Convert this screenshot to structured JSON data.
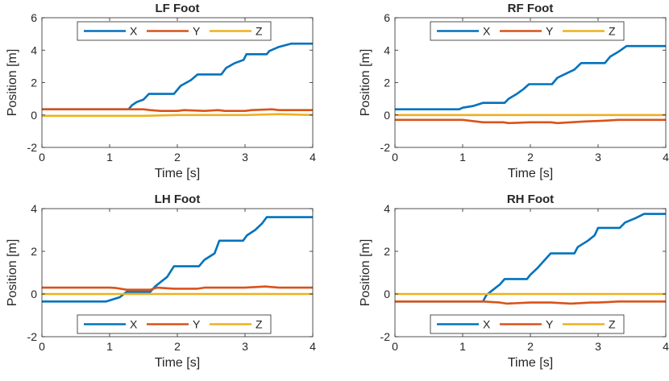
{
  "chart_data": [
    {
      "type": "line",
      "title": "LF Foot",
      "xlabel": "Time [s]",
      "ylabel": "Position [m]",
      "xlim": [
        0,
        4
      ],
      "ylim": [
        -2,
        6
      ],
      "xticks": [
        0,
        1,
        2,
        3,
        4
      ],
      "yticks": [
        -2,
        0,
        2,
        4,
        6
      ],
      "legend": "top",
      "series": [
        {
          "name": "X",
          "color": "#0072BD",
          "points": [
            [
              0,
              0.35
            ],
            [
              1.28,
              0.35
            ],
            [
              1.33,
              0.6
            ],
            [
              1.4,
              0.8
            ],
            [
              1.5,
              0.95
            ],
            [
              1.58,
              1.3
            ],
            [
              1.95,
              1.3
            ],
            [
              2.05,
              1.8
            ],
            [
              2.2,
              2.15
            ],
            [
              2.3,
              2.5
            ],
            [
              2.65,
              2.5
            ],
            [
              2.72,
              2.9
            ],
            [
              2.85,
              3.2
            ],
            [
              2.98,
              3.4
            ],
            [
              3.02,
              3.75
            ],
            [
              3.32,
              3.75
            ],
            [
              3.36,
              3.95
            ],
            [
              3.5,
              4.2
            ],
            [
              3.68,
              4.4
            ],
            [
              4,
              4.4
            ]
          ]
        },
        {
          "name": "Y",
          "color": "#D95319",
          "points": [
            [
              0,
              0.35
            ],
            [
              1.5,
              0.35
            ],
            [
              1.6,
              0.3
            ],
            [
              1.75,
              0.25
            ],
            [
              2.0,
              0.25
            ],
            [
              2.1,
              0.3
            ],
            [
              2.4,
              0.25
            ],
            [
              2.6,
              0.3
            ],
            [
              2.7,
              0.25
            ],
            [
              3.0,
              0.25
            ],
            [
              3.1,
              0.3
            ],
            [
              3.4,
              0.35
            ],
            [
              3.5,
              0.3
            ],
            [
              4,
              0.3
            ]
          ]
        },
        {
          "name": "Z",
          "color": "#EDB120",
          "points": [
            [
              0,
              -0.05
            ],
            [
              1.5,
              -0.05
            ],
            [
              2.0,
              0.0
            ],
            [
              2.5,
              0.0
            ],
            [
              3.0,
              0.0
            ],
            [
              3.5,
              0.05
            ],
            [
              4,
              0.0
            ]
          ]
        }
      ]
    },
    {
      "type": "line",
      "title": "RF Foot",
      "xlabel": "Time [s]",
      "ylabel": "Position [m]",
      "xlim": [
        0,
        4
      ],
      "ylim": [
        -2,
        6
      ],
      "xticks": [
        0,
        1,
        2,
        3,
        4
      ],
      "yticks": [
        -2,
        0,
        2,
        4,
        6
      ],
      "legend": "top",
      "series": [
        {
          "name": "X",
          "color": "#0072BD",
          "points": [
            [
              0,
              0.35
            ],
            [
              0.95,
              0.35
            ],
            [
              1.0,
              0.45
            ],
            [
              1.15,
              0.55
            ],
            [
              1.3,
              0.75
            ],
            [
              1.62,
              0.75
            ],
            [
              1.68,
              1.0
            ],
            [
              1.8,
              1.3
            ],
            [
              1.9,
              1.6
            ],
            [
              1.98,
              1.9
            ],
            [
              2.32,
              1.9
            ],
            [
              2.4,
              2.3
            ],
            [
              2.55,
              2.6
            ],
            [
              2.65,
              2.8
            ],
            [
              2.75,
              3.2
            ],
            [
              3.1,
              3.2
            ],
            [
              3.18,
              3.6
            ],
            [
              3.3,
              3.9
            ],
            [
              3.42,
              4.25
            ],
            [
              4,
              4.25
            ]
          ]
        },
        {
          "name": "Y",
          "color": "#D95319",
          "points": [
            [
              0,
              -0.3
            ],
            [
              1.0,
              -0.3
            ],
            [
              1.3,
              -0.45
            ],
            [
              1.6,
              -0.45
            ],
            [
              1.68,
              -0.5
            ],
            [
              2.0,
              -0.45
            ],
            [
              2.3,
              -0.45
            ],
            [
              2.4,
              -0.5
            ],
            [
              2.8,
              -0.4
            ],
            [
              3.1,
              -0.35
            ],
            [
              3.3,
              -0.3
            ],
            [
              4,
              -0.3
            ]
          ]
        },
        {
          "name": "Z",
          "color": "#EDB120",
          "points": [
            [
              0,
              0.0
            ],
            [
              1.0,
              0.0
            ],
            [
              2.0,
              0.0
            ],
            [
              3.0,
              0.0
            ],
            [
              4,
              0.0
            ]
          ]
        }
      ]
    },
    {
      "type": "line",
      "title": "LH Foot",
      "xlabel": "Time [s]",
      "ylabel": "Position [m]",
      "xlim": [
        0,
        4
      ],
      "ylim": [
        -2,
        4
      ],
      "xticks": [
        0,
        1,
        2,
        3,
        4
      ],
      "yticks": [
        -2,
        0,
        2,
        4
      ],
      "legend": "bottom",
      "series": [
        {
          "name": "X",
          "color": "#0072BD",
          "points": [
            [
              0,
              -0.35
            ],
            [
              0.95,
              -0.35
            ],
            [
              1.05,
              -0.25
            ],
            [
              1.15,
              -0.15
            ],
            [
              1.25,
              0.1
            ],
            [
              1.6,
              0.1
            ],
            [
              1.67,
              0.35
            ],
            [
              1.75,
              0.55
            ],
            [
              1.85,
              0.8
            ],
            [
              1.95,
              1.3
            ],
            [
              2.32,
              1.3
            ],
            [
              2.4,
              1.6
            ],
            [
              2.55,
              1.9
            ],
            [
              2.62,
              2.5
            ],
            [
              2.97,
              2.5
            ],
            [
              3.03,
              2.75
            ],
            [
              3.15,
              3.0
            ],
            [
              3.25,
              3.3
            ],
            [
              3.32,
              3.6
            ],
            [
              4,
              3.6
            ]
          ]
        },
        {
          "name": "Y",
          "color": "#D95319",
          "points": [
            [
              0,
              0.3
            ],
            [
              1.0,
              0.3
            ],
            [
              1.1,
              0.28
            ],
            [
              1.25,
              0.2
            ],
            [
              1.6,
              0.2
            ],
            [
              1.7,
              0.3
            ],
            [
              1.95,
              0.25
            ],
            [
              2.3,
              0.25
            ],
            [
              2.4,
              0.3
            ],
            [
              2.6,
              0.3
            ],
            [
              2.9,
              0.3
            ],
            [
              3.0,
              0.3
            ],
            [
              3.3,
              0.35
            ],
            [
              3.5,
              0.3
            ],
            [
              4,
              0.3
            ]
          ]
        },
        {
          "name": "Z",
          "color": "#EDB120",
          "points": [
            [
              0,
              0.0
            ],
            [
              1.0,
              0.0
            ],
            [
              1.3,
              0.0
            ],
            [
              2.0,
              0.0
            ],
            [
              3.0,
              0.0
            ],
            [
              4,
              0.0
            ]
          ]
        }
      ]
    },
    {
      "type": "line",
      "title": "RH Foot",
      "xlabel": "Time [s]",
      "ylabel": "Position [m]",
      "xlim": [
        0,
        4
      ],
      "ylim": [
        -2,
        4
      ],
      "xticks": [
        0,
        1,
        2,
        3,
        4
      ],
      "yticks": [
        -2,
        0,
        2,
        4
      ],
      "legend": "bottom",
      "series": [
        {
          "name": "X",
          "color": "#0072BD",
          "points": [
            [
              0,
              -0.35
            ],
            [
              1.3,
              -0.35
            ],
            [
              1.35,
              -0.05
            ],
            [
              1.45,
              0.2
            ],
            [
              1.55,
              0.45
            ],
            [
              1.62,
              0.7
            ],
            [
              1.95,
              0.7
            ],
            [
              2.0,
              0.9
            ],
            [
              2.1,
              1.2
            ],
            [
              2.2,
              1.55
            ],
            [
              2.3,
              1.9
            ],
            [
              2.65,
              1.9
            ],
            [
              2.7,
              2.2
            ],
            [
              2.85,
              2.5
            ],
            [
              2.95,
              2.75
            ],
            [
              3.0,
              3.1
            ],
            [
              3.32,
              3.1
            ],
            [
              3.4,
              3.35
            ],
            [
              3.55,
              3.55
            ],
            [
              3.68,
              3.75
            ],
            [
              4,
              3.75
            ]
          ]
        },
        {
          "name": "Y",
          "color": "#D95319",
          "points": [
            [
              0,
              -0.35
            ],
            [
              1.3,
              -0.35
            ],
            [
              1.55,
              -0.4
            ],
            [
              1.65,
              -0.45
            ],
            [
              2.0,
              -0.4
            ],
            [
              2.3,
              -0.4
            ],
            [
              2.6,
              -0.45
            ],
            [
              2.9,
              -0.4
            ],
            [
              3.0,
              -0.4
            ],
            [
              3.3,
              -0.35
            ],
            [
              4,
              -0.35
            ]
          ]
        },
        {
          "name": "Z",
          "color": "#EDB120",
          "points": [
            [
              0,
              0.0
            ],
            [
              1.0,
              0.0
            ],
            [
              2.0,
              0.0
            ],
            [
              3.0,
              0.0
            ],
            [
              4,
              0.0
            ]
          ]
        }
      ]
    }
  ]
}
